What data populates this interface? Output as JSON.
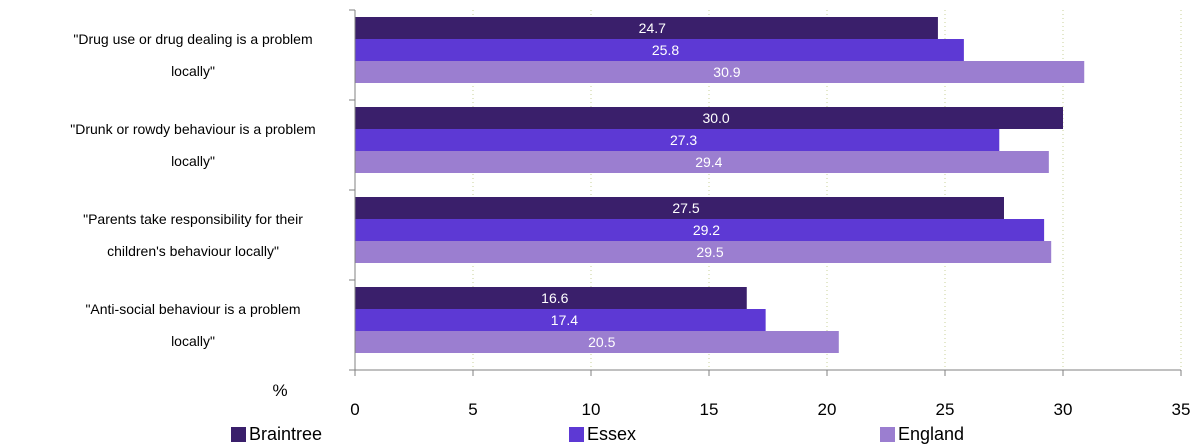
{
  "chart_data": {
    "type": "bar",
    "orientation": "horizontal",
    "categories": [
      "\"Drug use or drug dealing is a problem locally\"",
      "\"Drunk or rowdy behaviour is a problem locally\"",
      "\"Parents take responsibility for their children's behaviour locally\"",
      "\"Anti-social behaviour is a problem locally\""
    ],
    "category_lines": [
      [
        "\"Drug use or drug dealing is a problem",
        "locally\""
      ],
      [
        "\"Drunk or rowdy behaviour is a problem",
        "locally\""
      ],
      [
        "\"Parents take responsibility for their",
        "children's behaviour locally\""
      ],
      [
        "\"Anti-social behaviour is a problem",
        "locally\""
      ]
    ],
    "series": [
      {
        "name": "Braintree",
        "color": "#3a1f6b",
        "values": [
          24.7,
          30.0,
          27.5,
          16.6
        ],
        "labels": [
          "24.7",
          "30.0",
          "27.5",
          "16.6"
        ]
      },
      {
        "name": "Essex",
        "color": "#5d39d4",
        "values": [
          25.8,
          27.3,
          29.2,
          17.4
        ],
        "labels": [
          "25.8",
          "27.3",
          "29.2",
          "17.4"
        ]
      },
      {
        "name": "England",
        "color": "#9b7ed0",
        "values": [
          30.9,
          29.4,
          29.5,
          20.5
        ],
        "labels": [
          "30.9",
          "29.4",
          "29.5",
          "20.5"
        ]
      }
    ],
    "xlim": [
      0,
      35
    ],
    "xticks": [
      0,
      5,
      10,
      15,
      20,
      25,
      30,
      35
    ],
    "xlabel": "%",
    "grid": "vertical dotted",
    "legend_position": "bottom"
  }
}
